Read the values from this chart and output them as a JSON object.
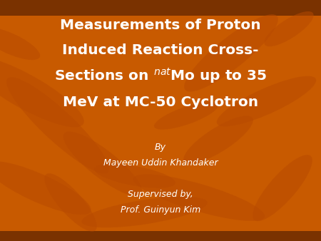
{
  "background_color": "#C85A00",
  "title_line1": "Measurements of Proton",
  "title_line2": "Induced Reaction Cross-",
  "title_line3": "Sections on $^{nat}$Mo up to 35",
  "title_line4": "MeV at MC-50 Cyclotron",
  "by_line": "By",
  "author_line": "Mayeen Uddin Khandaker",
  "supervised_line": "Supervised by,",
  "supervisor_line": "Prof. Guinyun Kim",
  "title_color": "#FFFFFF",
  "text_color": "#FFFFFF",
  "title_fontsize": 14.5,
  "author_fontsize": 9,
  "top_bar_color": "#7A3200",
  "bottom_bar_color": "#7A3200",
  "leaf_color": "#B84A00",
  "leaf_params": [
    [
      0.08,
      0.62,
      0.45,
      0.13,
      -38
    ],
    [
      0.18,
      0.48,
      0.5,
      0.11,
      -52
    ],
    [
      0.72,
      0.78,
      0.42,
      0.11,
      48
    ],
    [
      0.83,
      0.58,
      0.36,
      0.1,
      32
    ],
    [
      0.62,
      0.18,
      0.44,
      0.11,
      -22
    ],
    [
      0.88,
      0.22,
      0.32,
      0.09,
      58
    ],
    [
      0.12,
      0.22,
      0.38,
      0.11,
      -32
    ],
    [
      0.45,
      0.12,
      0.4,
      0.1,
      12
    ],
    [
      0.68,
      0.42,
      0.28,
      0.09,
      42
    ],
    [
      0.32,
      0.32,
      0.35,
      0.1,
      -48
    ],
    [
      0.03,
      0.82,
      0.22,
      0.08,
      -33
    ],
    [
      0.9,
      0.88,
      0.2,
      0.07,
      43
    ],
    [
      0.42,
      0.27,
      0.26,
      0.08,
      -14
    ],
    [
      0.58,
      0.52,
      0.22,
      0.07,
      26
    ],
    [
      0.22,
      0.16,
      0.28,
      0.08,
      -58
    ]
  ]
}
